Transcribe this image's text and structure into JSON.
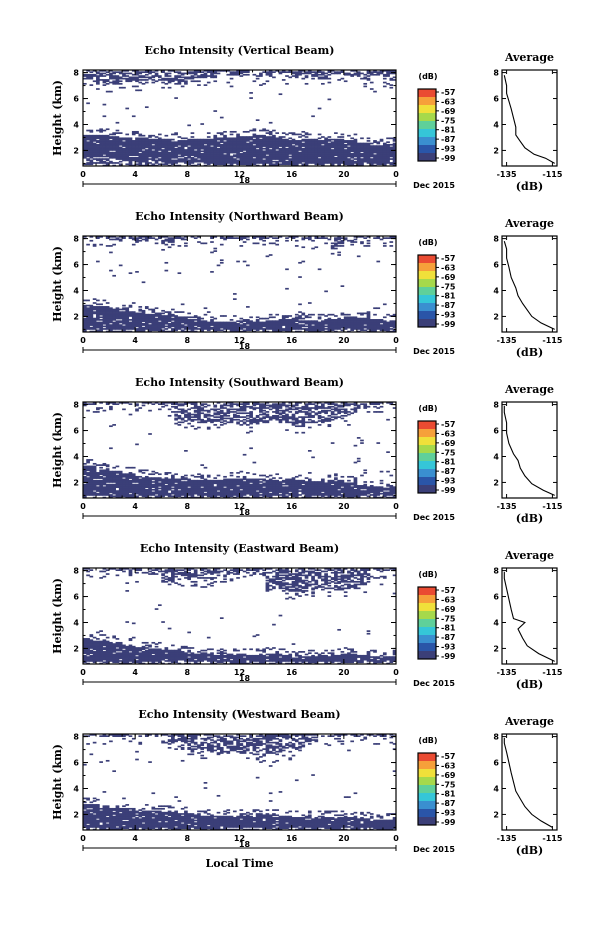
{
  "colors": {
    "echo": "#3b3f78",
    "colorbar": [
      "#3b3f78",
      "#2a55a8",
      "#3a8fd0",
      "#35c6d8",
      "#5fd09a",
      "#a6d94b",
      "#f0e03a",
      "#f6a03a",
      "#ea4b32"
    ]
  },
  "common": {
    "xticks": [
      "0",
      "4",
      "8",
      "12",
      "16",
      "20",
      "0"
    ],
    "yticks": [
      "2",
      "4",
      "6",
      "8"
    ],
    "ylabel": "Height (km)",
    "date_tick": "18",
    "date_label": "Dec 2015",
    "colorbar_unit": "(dB)",
    "colorbar_ticks": [
      "-57",
      "-63",
      "-69",
      "-75",
      "-81",
      "-87",
      "-93",
      "-99"
    ],
    "avg_title": "Average",
    "avg_xlabel": "(dB)",
    "xlabel": "Local Time"
  },
  "chart_data": [
    {
      "type": "heatmap",
      "title": "Echo Intensity (Vertical Beam)",
      "xlabel": "",
      "ylabel": "Height (km)",
      "xlim": [
        0,
        24
      ],
      "ylim": [
        0.8,
        8.2
      ],
      "avg_xticks": [
        "-135",
        "-115"
      ],
      "avg_xlim": [
        -137,
        -113
      ],
      "echo_layers": {
        "lower_base_km": [
          1.5,
          1.5,
          1.4,
          1.2,
          1.2,
          1.2,
          1.1,
          1.1,
          1.1,
          1.0,
          1.0,
          1.0,
          1.0,
          1.0,
          1.0,
          1.0,
          1.0,
          1.0,
          1.0,
          1.0,
          1.0,
          1.0,
          1.0,
          1.0
        ],
        "lower_top_km": [
          3.2,
          3.2,
          3.1,
          3.0,
          3.0,
          2.9,
          2.9,
          2.8,
          2.9,
          2.9,
          3.0,
          3.0,
          3.1,
          3.2,
          3.1,
          3.0,
          2.9,
          2.9,
          2.8,
          2.9,
          2.8,
          2.6,
          2.4,
          2.5
        ],
        "upper_base_km": [
          7.4,
          6.8,
          7.0,
          7.2,
          7.1,
          7.3,
          7.1,
          7.0,
          7.4,
          7.6,
          7.8,
          7.7,
          7.6,
          7.5,
          7.7,
          7.6,
          7.6,
          7.5,
          7.4,
          7.8,
          7.6,
          7.4,
          7.7,
          7.3
        ]
      },
      "average_profile": [
        {
          "h": 1.0,
          "db": -114
        },
        {
          "h": 1.4,
          "db": -118
        },
        {
          "h": 1.7,
          "db": -123
        },
        {
          "h": 2.2,
          "db": -127
        },
        {
          "h": 2.7,
          "db": -129
        },
        {
          "h": 3.2,
          "db": -131
        },
        {
          "h": 3.8,
          "db": -131
        },
        {
          "h": 4.5,
          "db": -132
        },
        {
          "h": 5.2,
          "db": -133
        },
        {
          "h": 5.8,
          "db": -134
        },
        {
          "h": 6.4,
          "db": -135
        },
        {
          "h": 7.0,
          "db": -135
        },
        {
          "h": 7.8,
          "db": -136
        }
      ]
    },
    {
      "type": "heatmap",
      "title": "Echo Intensity (Northward Beam)",
      "xlabel": "",
      "ylabel": "Height (km)",
      "xlim": [
        0,
        24
      ],
      "ylim": [
        0.8,
        8.2
      ],
      "avg_xticks": [
        "-135",
        "-115"
      ],
      "avg_xlim": [
        -137,
        -113
      ],
      "echo_layers": {
        "lower_base_km": [
          1.0,
          1.0,
          1.0,
          1.0,
          1.0,
          1.0,
          1.0,
          1.0,
          1.0,
          1.0,
          1.0,
          1.0,
          1.0,
          1.0,
          1.0,
          1.0,
          1.0,
          1.0,
          1.0,
          1.0,
          1.0,
          1.0,
          1.0,
          1.0
        ],
        "lower_top_km": [
          2.9,
          2.8,
          2.6,
          2.4,
          2.3,
          2.2,
          2.1,
          2.0,
          1.8,
          1.7,
          1.6,
          1.6,
          1.7,
          1.6,
          1.7,
          1.8,
          1.9,
          1.7,
          1.7,
          1.8,
          2.0,
          1.9,
          1.8,
          1.7
        ],
        "upper_base_km": [
          7.9,
          7.9,
          7.8,
          7.9,
          7.7,
          7.9,
          7.6,
          7.9,
          7.9,
          7.9,
          7.9,
          7.9,
          7.9,
          7.9,
          7.9,
          7.9,
          7.9,
          7.7,
          7.9,
          7.2,
          7.6,
          7.9,
          7.9,
          7.9
        ]
      },
      "average_profile": [
        {
          "h": 1.0,
          "db": -114
        },
        {
          "h": 1.5,
          "db": -120
        },
        {
          "h": 2.0,
          "db": -124
        },
        {
          "h": 2.5,
          "db": -126
        },
        {
          "h": 3.0,
          "db": -128
        },
        {
          "h": 3.6,
          "db": -130
        },
        {
          "h": 4.2,
          "db": -131
        },
        {
          "h": 5.0,
          "db": -133
        },
        {
          "h": 5.8,
          "db": -134
        },
        {
          "h": 6.5,
          "db": -135
        },
        {
          "h": 7.2,
          "db": -135
        },
        {
          "h": 7.8,
          "db": -136
        }
      ]
    },
    {
      "type": "heatmap",
      "title": "Echo Intensity (Southward Beam)",
      "xlabel": "",
      "ylabel": "Height (km)",
      "xlim": [
        0,
        24
      ],
      "ylim": [
        0.8,
        8.2
      ],
      "avg_xticks": [
        "-135",
        "-115"
      ],
      "avg_xlim": [
        -137,
        -113
      ],
      "echo_layers": {
        "lower_base_km": [
          1.0,
          1.0,
          1.0,
          1.0,
          1.0,
          1.0,
          1.0,
          1.0,
          1.0,
          1.0,
          1.0,
          1.0,
          1.0,
          1.0,
          1.0,
          1.0,
          1.0,
          1.0,
          1.0,
          1.0,
          1.0,
          1.0,
          1.0,
          1.0
        ],
        "lower_top_km": [
          3.3,
          3.0,
          2.9,
          2.7,
          2.5,
          2.4,
          2.3,
          2.3,
          2.2,
          2.2,
          2.2,
          2.3,
          2.3,
          2.3,
          2.2,
          2.2,
          2.2,
          2.1,
          2.1,
          2.2,
          2.0,
          1.8,
          1.7,
          1.6
        ],
        "upper_base_km": [
          7.9,
          7.9,
          7.9,
          7.9,
          7.9,
          7.9,
          7.6,
          6.6,
          6.4,
          6.5,
          6.6,
          6.5,
          6.3,
          6.4,
          6.6,
          6.5,
          6.3,
          6.5,
          6.6,
          6.8,
          7.2,
          7.6,
          7.9,
          7.9
        ]
      },
      "average_profile": [
        {
          "h": 1.0,
          "db": -114
        },
        {
          "h": 1.4,
          "db": -119
        },
        {
          "h": 1.9,
          "db": -124
        },
        {
          "h": 2.5,
          "db": -127
        },
        {
          "h": 3.1,
          "db": -129
        },
        {
          "h": 3.7,
          "db": -130
        },
        {
          "h": 4.2,
          "db": -132
        },
        {
          "h": 5.0,
          "db": -134
        },
        {
          "h": 5.8,
          "db": -135
        },
        {
          "h": 6.6,
          "db": -135
        },
        {
          "h": 7.4,
          "db": -136
        },
        {
          "h": 7.9,
          "db": -136
        }
      ]
    },
    {
      "type": "heatmap",
      "title": "Echo Intensity (Eastward Beam)",
      "xlabel": "",
      "ylabel": "Height (km)",
      "xlim": [
        0,
        24
      ],
      "ylim": [
        0.8,
        8.2
      ],
      "avg_xticks": [
        "-135",
        "-115"
      ],
      "avg_xlim": [
        -137,
        -113
      ],
      "echo_layers": {
        "lower_base_km": [
          1.0,
          1.0,
          1.0,
          1.0,
          1.0,
          1.0,
          1.0,
          1.0,
          1.0,
          1.0,
          1.0,
          1.0,
          1.0,
          1.0,
          1.0,
          1.0,
          1.0,
          1.0,
          1.0,
          1.0,
          1.0,
          1.0,
          1.0,
          1.0
        ],
        "lower_top_km": [
          2.7,
          2.6,
          2.5,
          2.2,
          2.1,
          2.0,
          1.9,
          1.7,
          1.6,
          1.6,
          1.5,
          1.5,
          1.5,
          1.5,
          1.6,
          1.5,
          1.4,
          1.4,
          1.5,
          1.5,
          1.6,
          1.5,
          1.4,
          1.4
        ],
        "upper_base_km": [
          7.9,
          7.9,
          7.9,
          7.9,
          7.9,
          7.6,
          7.0,
          7.2,
          7.3,
          7.2,
          7.5,
          7.6,
          7.9,
          7.5,
          6.4,
          6.3,
          6.3,
          6.4,
          6.5,
          6.4,
          6.5,
          6.8,
          7.9,
          7.9
        ]
      },
      "average_profile": [
        {
          "h": 1.0,
          "db": -114
        },
        {
          "h": 1.6,
          "db": -121
        },
        {
          "h": 2.2,
          "db": -126
        },
        {
          "h": 2.8,
          "db": -128
        },
        {
          "h": 3.5,
          "db": -130
        },
        {
          "h": 4.0,
          "db": -127
        },
        {
          "h": 4.3,
          "db": -132
        },
        {
          "h": 5.0,
          "db": -133
        },
        {
          "h": 5.8,
          "db": -134
        },
        {
          "h": 6.6,
          "db": -135
        },
        {
          "h": 7.4,
          "db": -136
        },
        {
          "h": 7.9,
          "db": -136
        }
      ]
    },
    {
      "type": "heatmap",
      "title": "Echo Intensity (Westward Beam)",
      "xlabel": "Local Time",
      "ylabel": "Height (km)",
      "xlim": [
        0,
        24
      ],
      "ylim": [
        0.8,
        8.2
      ],
      "avg_xticks": [
        "-135",
        "-115"
      ],
      "avg_xlim": [
        -137,
        -113
      ],
      "echo_layers": {
        "lower_base_km": [
          1.0,
          1.0,
          1.0,
          1.0,
          1.0,
          1.0,
          1.0,
          1.0,
          1.0,
          1.0,
          1.0,
          1.0,
          1.0,
          1.0,
          1.0,
          1.0,
          1.0,
          1.0,
          1.0,
          1.0,
          1.0,
          1.0,
          1.0,
          1.0
        ],
        "lower_top_km": [
          2.8,
          2.7,
          2.5,
          2.4,
          2.3,
          2.3,
          2.2,
          2.1,
          2.0,
          1.9,
          1.9,
          1.9,
          1.9,
          2.0,
          2.0,
          1.9,
          1.8,
          1.8,
          1.8,
          1.8,
          1.8,
          1.7,
          1.6,
          1.6
        ],
        "upper_base_km": [
          7.9,
          7.9,
          7.9,
          7.9,
          7.9,
          7.9,
          7.4,
          7.4,
          6.8,
          6.7,
          6.6,
          6.7,
          6.6,
          6.4,
          6.5,
          6.7,
          7.0,
          7.5,
          7.9,
          7.9,
          7.9,
          7.9,
          7.9,
          7.9
        ]
      },
      "average_profile": [
        {
          "h": 1.0,
          "db": -115
        },
        {
          "h": 1.5,
          "db": -120
        },
        {
          "h": 2.0,
          "db": -124
        },
        {
          "h": 2.6,
          "db": -127
        },
        {
          "h": 3.2,
          "db": -129
        },
        {
          "h": 3.8,
          "db": -131
        },
        {
          "h": 4.5,
          "db": -132
        },
        {
          "h": 5.2,
          "db": -133
        },
        {
          "h": 6.0,
          "db": -134
        },
        {
          "h": 6.8,
          "db": -135
        },
        {
          "h": 7.5,
          "db": -136
        },
        {
          "h": 7.9,
          "db": -136
        }
      ]
    }
  ]
}
